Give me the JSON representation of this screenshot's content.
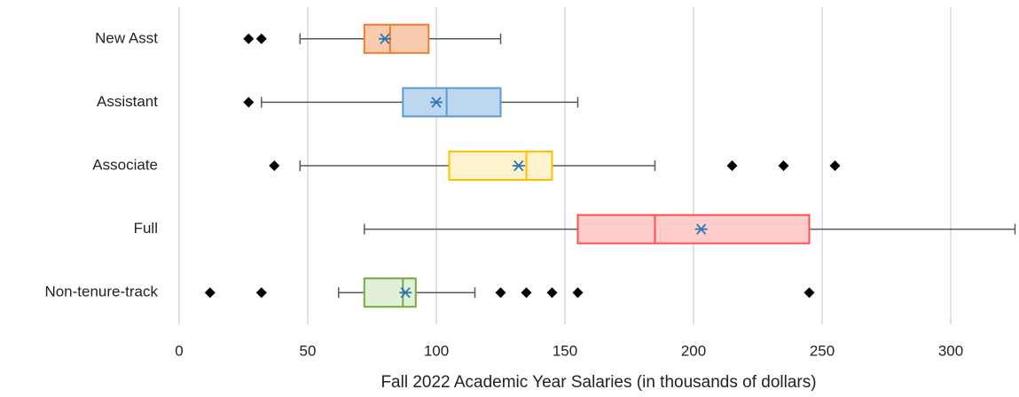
{
  "chart_data": {
    "type": "boxplot",
    "orientation": "horizontal",
    "xlabel": "Fall 2022 Academic Year Salaries (in thousands of dollars)",
    "xlim": [
      0,
      325
    ],
    "xticks": [
      0,
      50,
      100,
      150,
      200,
      250,
      300
    ],
    "grid": true,
    "mean_color": "#2e75b6",
    "outlier_color": "#000000",
    "whisker_color": "#595959",
    "series": [
      {
        "name": "New Asst",
        "color": "#ed7d31",
        "fill": "#f8cbad",
        "min": 47,
        "q1": 72,
        "median": 82,
        "q3": 97,
        "max": 125,
        "mean": 80,
        "outliers": [
          27,
          32
        ]
      },
      {
        "name": "Assistant",
        "color": "#5b9bd5",
        "fill": "#bdd7ee",
        "min": 32,
        "q1": 87,
        "median": 104,
        "q3": 125,
        "max": 155,
        "mean": 100,
        "outliers": [
          27
        ]
      },
      {
        "name": "Associate",
        "color": "#ffc000",
        "fill": "#fff2cc",
        "min": 47,
        "q1": 105,
        "median": 135,
        "q3": 145,
        "max": 185,
        "mean": 132,
        "outliers": [
          37,
          215,
          235,
          255
        ]
      },
      {
        "name": "Full",
        "color": "#ff5050",
        "fill": "#ffcccc",
        "min": 72,
        "q1": 155,
        "median": 185,
        "q3": 245,
        "max": 325,
        "mean": 203,
        "outliers": []
      },
      {
        "name": "Non-tenure-track",
        "color": "#70ad47",
        "fill": "#e2f0d9",
        "min": 62,
        "q1": 72,
        "median": 87,
        "q3": 92,
        "max": 115,
        "mean": 88,
        "outliers": [
          12,
          32,
          125,
          135,
          145,
          155,
          245
        ]
      }
    ]
  }
}
